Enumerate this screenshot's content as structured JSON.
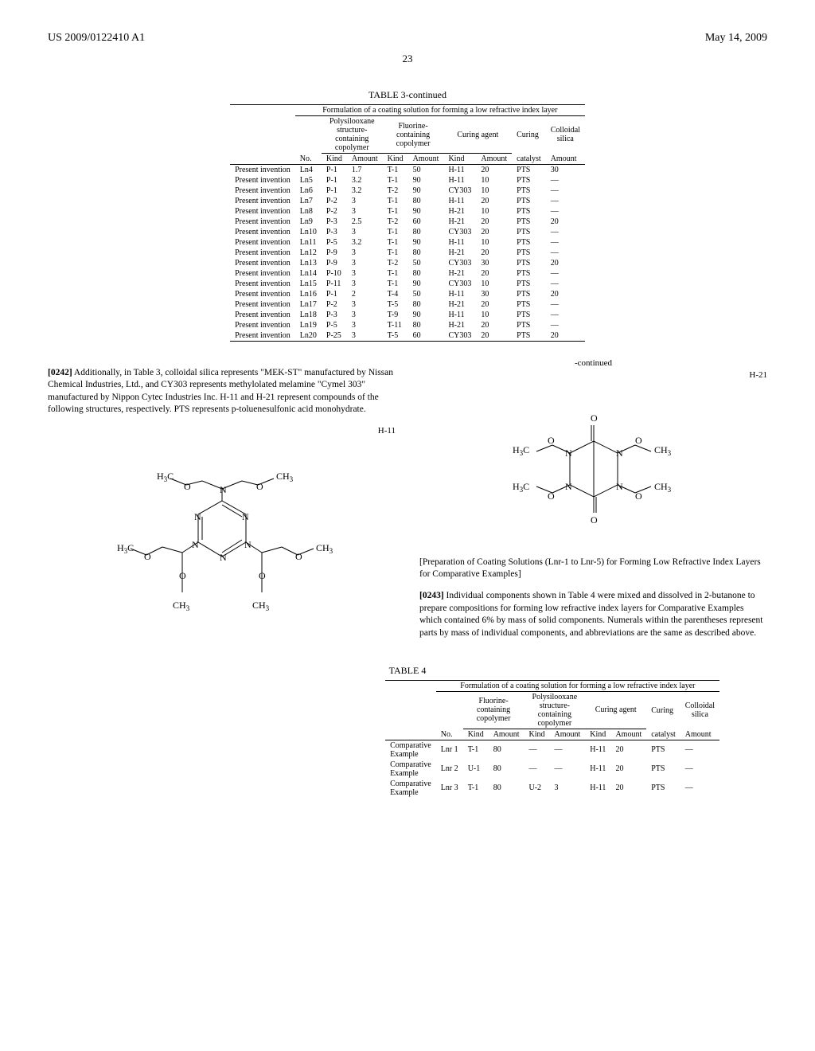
{
  "header": {
    "left": "US 2009/0122410 A1",
    "right": "May 14, 2009"
  },
  "page_number": "23",
  "table3": {
    "title": "TABLE 3-continued",
    "caption": "Formulation of a coating solution for forming a low refractive index layer",
    "group_headers": {
      "poly": "Polysilooxane\nstructure-\ncontaining\ncopolymer",
      "fluor": "Fluorine-\ncontaining\ncopolymer",
      "curing": "Curing agent",
      "curing2": "Curing",
      "silica": "Colloidal\nsilica"
    },
    "sub_headers": [
      "",
      "No.",
      "Kind",
      "Amount",
      "Kind",
      "Amount",
      "Kind",
      "Amount",
      "catalyst",
      "Amount"
    ],
    "rows": [
      [
        "Present invention",
        "Ln4",
        "P-1",
        "1.7",
        "T-1",
        "50",
        "H-11",
        "20",
        "PTS",
        "30"
      ],
      [
        "Present invention",
        "Ln5",
        "P-1",
        "3.2",
        "T-1",
        "90",
        "H-11",
        "10",
        "PTS",
        "—"
      ],
      [
        "Present invention",
        "Ln6",
        "P-1",
        "3.2",
        "T-2",
        "90",
        "CY303",
        "10",
        "PTS",
        "—"
      ],
      [
        "Present invention",
        "Ln7",
        "P-2",
        "3",
        "T-1",
        "80",
        "H-11",
        "20",
        "PTS",
        "—"
      ],
      [
        "Present invention",
        "Ln8",
        "P-2",
        "3",
        "T-1",
        "90",
        "H-21",
        "10",
        "PTS",
        "—"
      ],
      [
        "Present invention",
        "Ln9",
        "P-3",
        "2.5",
        "T-2",
        "60",
        "H-21",
        "20",
        "PTS",
        "20"
      ],
      [
        "Present invention",
        "Ln10",
        "P-3",
        "3",
        "T-1",
        "80",
        "CY303",
        "20",
        "PTS",
        "—"
      ],
      [
        "Present invention",
        "Ln11",
        "P-5",
        "3.2",
        "T-1",
        "90",
        "H-11",
        "10",
        "PTS",
        "—"
      ],
      [
        "Present invention",
        "Ln12",
        "P-9",
        "3",
        "T-1",
        "80",
        "H-21",
        "20",
        "PTS",
        "—"
      ],
      [
        "Present invention",
        "Ln13",
        "P-9",
        "3",
        "T-2",
        "50",
        "CY303",
        "30",
        "PTS",
        "20"
      ],
      [
        "Present invention",
        "Ln14",
        "P-10",
        "3",
        "T-1",
        "80",
        "H-21",
        "20",
        "PTS",
        "—"
      ],
      [
        "Present invention",
        "Ln15",
        "P-11",
        "3",
        "T-1",
        "90",
        "CY303",
        "10",
        "PTS",
        "—"
      ],
      [
        "Present invention",
        "Ln16",
        "P-1",
        "2",
        "T-4",
        "50",
        "H-11",
        "30",
        "PTS",
        "20"
      ],
      [
        "Present invention",
        "Ln17",
        "P-2",
        "3",
        "T-5",
        "80",
        "H-21",
        "20",
        "PTS",
        "—"
      ],
      [
        "Present invention",
        "Ln18",
        "P-3",
        "3",
        "T-9",
        "90",
        "H-11",
        "10",
        "PTS",
        "—"
      ],
      [
        "Present invention",
        "Ln19",
        "P-5",
        "3",
        "T-11",
        "80",
        "H-21",
        "20",
        "PTS",
        "—"
      ],
      [
        "Present invention",
        "Ln20",
        "P-25",
        "3",
        "T-5",
        "60",
        "CY303",
        "20",
        "PTS",
        "20"
      ]
    ]
  },
  "para_0242": {
    "num": "[0242]",
    "text": "Additionally, in Table 3, colloidal silica represents \"MEK-ST\" manufactured by Nissan Chemical Industries, Ltd., and CY303 represents methylolated melamine \"Cymel 303\" manufactured by Nippon Cytec Industries Inc. H-11 and H-21 represent compounds of the following structures, respectively. PTS represents p-toluenesulfonic acid monohydrate."
  },
  "h11_label": "H-11",
  "h21_label": "H-21",
  "continued_label": "-continued",
  "prep_heading": "[Preparation of Coating Solutions (Lnr-1 to Lnr-5) for Forming Low Refractive Index Layers for Comparative Examples]",
  "para_0243": {
    "num": "[0243]",
    "text": "Individual components shown in Table 4 were mixed and dissolved in 2-butanone to prepare compositions for forming low refractive index layers for Comparative Examples which contained 6% by mass of solid components. Numerals within the parentheses represent parts by mass of individual components, and abbreviations are the same as described above."
  },
  "table4": {
    "title": "TABLE 4",
    "caption": "Formulation of a coating solution for forming a low refractive index layer",
    "group_headers": {
      "fluor": "Fluorine-\ncontaining\ncopolymer",
      "poly": "Polysilooxane\nstructure-\ncontaining\ncopolymer",
      "curing": "Curing agent",
      "curing2": "Curing",
      "silica": "Colloidal\nsilica"
    },
    "sub_headers": [
      "",
      "No.",
      "Kind",
      "Amount",
      "Kind",
      "Amount",
      "Kind",
      "Amount",
      "catalyst",
      "Amount"
    ],
    "rows": [
      [
        "Comparative\nExample",
        "Lnr 1",
        "T-1",
        "80",
        "—",
        "—",
        "H-11",
        "20",
        "PTS",
        "—"
      ],
      [
        "Comparative\nExample",
        "Lnr 2",
        "U-1",
        "80",
        "—",
        "—",
        "H-11",
        "20",
        "PTS",
        "—"
      ],
      [
        "Comparative\nExample",
        "Lnr 3",
        "T-1",
        "80",
        "U-2",
        "3",
        "H-11",
        "20",
        "PTS",
        "—"
      ]
    ]
  }
}
